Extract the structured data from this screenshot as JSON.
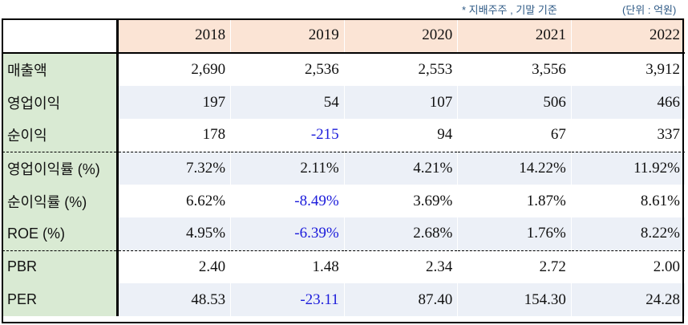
{
  "notes": {
    "basis": "* 지배주주 , 기말 기준",
    "unit": "(단위 : 억원)"
  },
  "colors": {
    "header_bg": "#fbe4d5",
    "label_bg": "#d9ead3",
    "shade_row_bg": "#ecf0f7",
    "negative_text": "#1c1cdb",
    "note_text": "#2e5a86"
  },
  "table": {
    "years": [
      "2018",
      "2019",
      "2020",
      "2021",
      "2022"
    ],
    "rows": [
      {
        "label": "매출액",
        "values": [
          "2,690",
          "2,536",
          "2,553",
          "3,556",
          "3,912"
        ]
      },
      {
        "label": "영업이익",
        "values": [
          "197",
          "54",
          "107",
          "506",
          "466"
        ]
      },
      {
        "label": "순이익",
        "values": [
          "178",
          "-215",
          "94",
          "67",
          "337"
        ]
      },
      {
        "label": "영업이익률 (%)",
        "values": [
          "7.32%",
          "2.11%",
          "4.21%",
          "14.22%",
          "11.92%"
        ]
      },
      {
        "label": "순이익률 (%)",
        "values": [
          "6.62%",
          "-8.49%",
          "3.69%",
          "1.87%",
          "8.61%"
        ]
      },
      {
        "label": "ROE (%)",
        "values": [
          "4.95%",
          "-6.39%",
          "2.68%",
          "1.76%",
          "8.22%"
        ]
      },
      {
        "label": "PBR",
        "values": [
          "2.40",
          "1.48",
          "2.34",
          "2.72",
          "2.00"
        ]
      },
      {
        "label": "PER",
        "values": [
          "48.53",
          "-23.11",
          "87.40",
          "154.30",
          "24.28"
        ]
      }
    ]
  }
}
